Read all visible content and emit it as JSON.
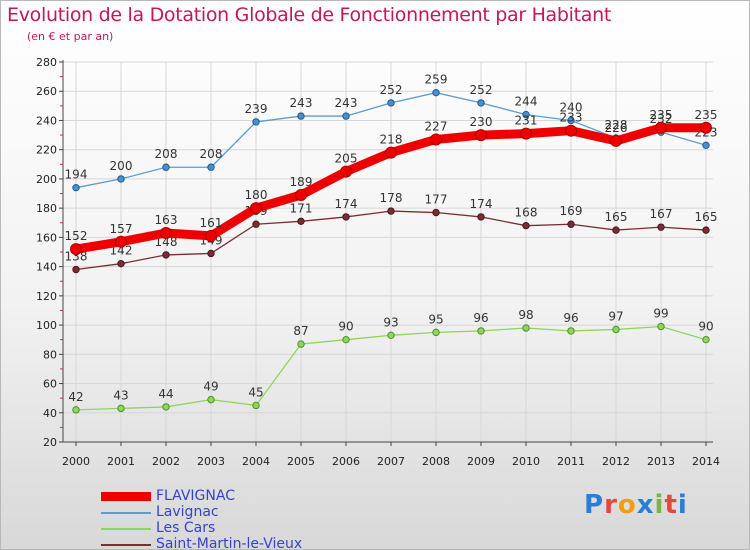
{
  "header": {
    "title": "Evolution de la Dotation Globale de Fonctionnement par Habitant",
    "subtitle": "(en € et par an)"
  },
  "logo": {
    "text": "Proxiti",
    "letters": [
      "P",
      "r",
      "o",
      "x",
      "i",
      "t",
      "i"
    ],
    "letter_colors": [
      "#2a7fd4",
      "#e8483c",
      "#f39c12",
      "#2a7fd4",
      "#7cb342",
      "#e8483c",
      "#2a7fd4"
    ]
  },
  "colors": {
    "axis": "#444444",
    "grid": "#d7d7d7",
    "tick_text": "#222222",
    "value_text": "#333333",
    "background_top": "#ffffff",
    "background_bottom": "#d8d8d8"
  },
  "chart_data": {
    "type": "line",
    "title": "Evolution de la Dotation Globale de Fonctionnement par Habitant",
    "subtitle": "(en € et par an)",
    "xlabel": "",
    "ylabel": "",
    "ylim": [
      20,
      280
    ],
    "ytick_step": 20,
    "yticks": [
      "20",
      "40",
      "60",
      "80",
      "100",
      "120",
      "140",
      "160",
      "180",
      "200",
      "220",
      "240",
      "260",
      "280"
    ],
    "grid": true,
    "legend_position": "bottom-left",
    "x": [
      "2000",
      "2001",
      "2002",
      "2003",
      "2004",
      "2005",
      "2006",
      "2007",
      "2008",
      "2009",
      "2010",
      "2011",
      "2012",
      "2013",
      "2014"
    ],
    "series": [
      {
        "name": "Les Cars",
        "line_color": "#8ed65c",
        "marker_color": "#8ed65c",
        "marker_stroke": "#4f8f2a",
        "width": "thin",
        "values": [
          42,
          43,
          44,
          49,
          45,
          87,
          90,
          93,
          95,
          96,
          98,
          96,
          97,
          99,
          90
        ],
        "value_labels": [
          "42",
          "43",
          "44",
          "49",
          "45",
          "87",
          "90",
          "93",
          "95",
          "96",
          "98",
          "96",
          "97",
          "99",
          "90"
        ]
      },
      {
        "name": "Saint-Martin-le-Vieux",
        "line_color": "#7a2e34",
        "marker_color": "#7a2e34",
        "marker_stroke": "#4a141a",
        "width": "thin",
        "values": [
          138,
          142,
          148,
          149,
          169,
          171,
          174,
          178,
          177,
          174,
          168,
          169,
          165,
          167,
          165
        ],
        "value_labels": [
          "138",
          "142",
          "148",
          "149",
          "169",
          "171",
          "174",
          "178",
          "177",
          "174",
          "168",
          "169",
          "165",
          "167",
          "165"
        ]
      },
      {
        "name": "Lavignac",
        "line_color": "#5c9ccf",
        "marker_color": "#4a8fd0",
        "marker_stroke": "#1f5a8e",
        "width": "thin",
        "values": [
          194,
          200,
          208,
          208,
          239,
          243,
          243,
          252,
          259,
          252,
          244,
          240,
          228,
          232,
          223
        ],
        "value_labels": [
          "194",
          "200",
          "208",
          "208",
          "239",
          "243",
          "243",
          "252",
          "259",
          "252",
          "244",
          "240",
          "228",
          "232",
          "223"
        ]
      },
      {
        "name": "FLAVIGNAC",
        "line_color": "#ee0000",
        "marker_color": "#ee0000",
        "marker_stroke": "#b00000",
        "width": "thick",
        "values": [
          152,
          157,
          163,
          161,
          180,
          189,
          205,
          218,
          227,
          230,
          231,
          233,
          226,
          235,
          235
        ],
        "value_labels": [
          "152",
          "157",
          "163",
          "161",
          "180",
          "189",
          "205",
          "218",
          "227",
          "230",
          "231",
          "233",
          "226",
          "235",
          "235"
        ]
      }
    ],
    "legend": [
      "FLAVIGNAC",
      "Lavignac",
      "Les Cars",
      "Saint-Martin-le-Vieux"
    ]
  }
}
